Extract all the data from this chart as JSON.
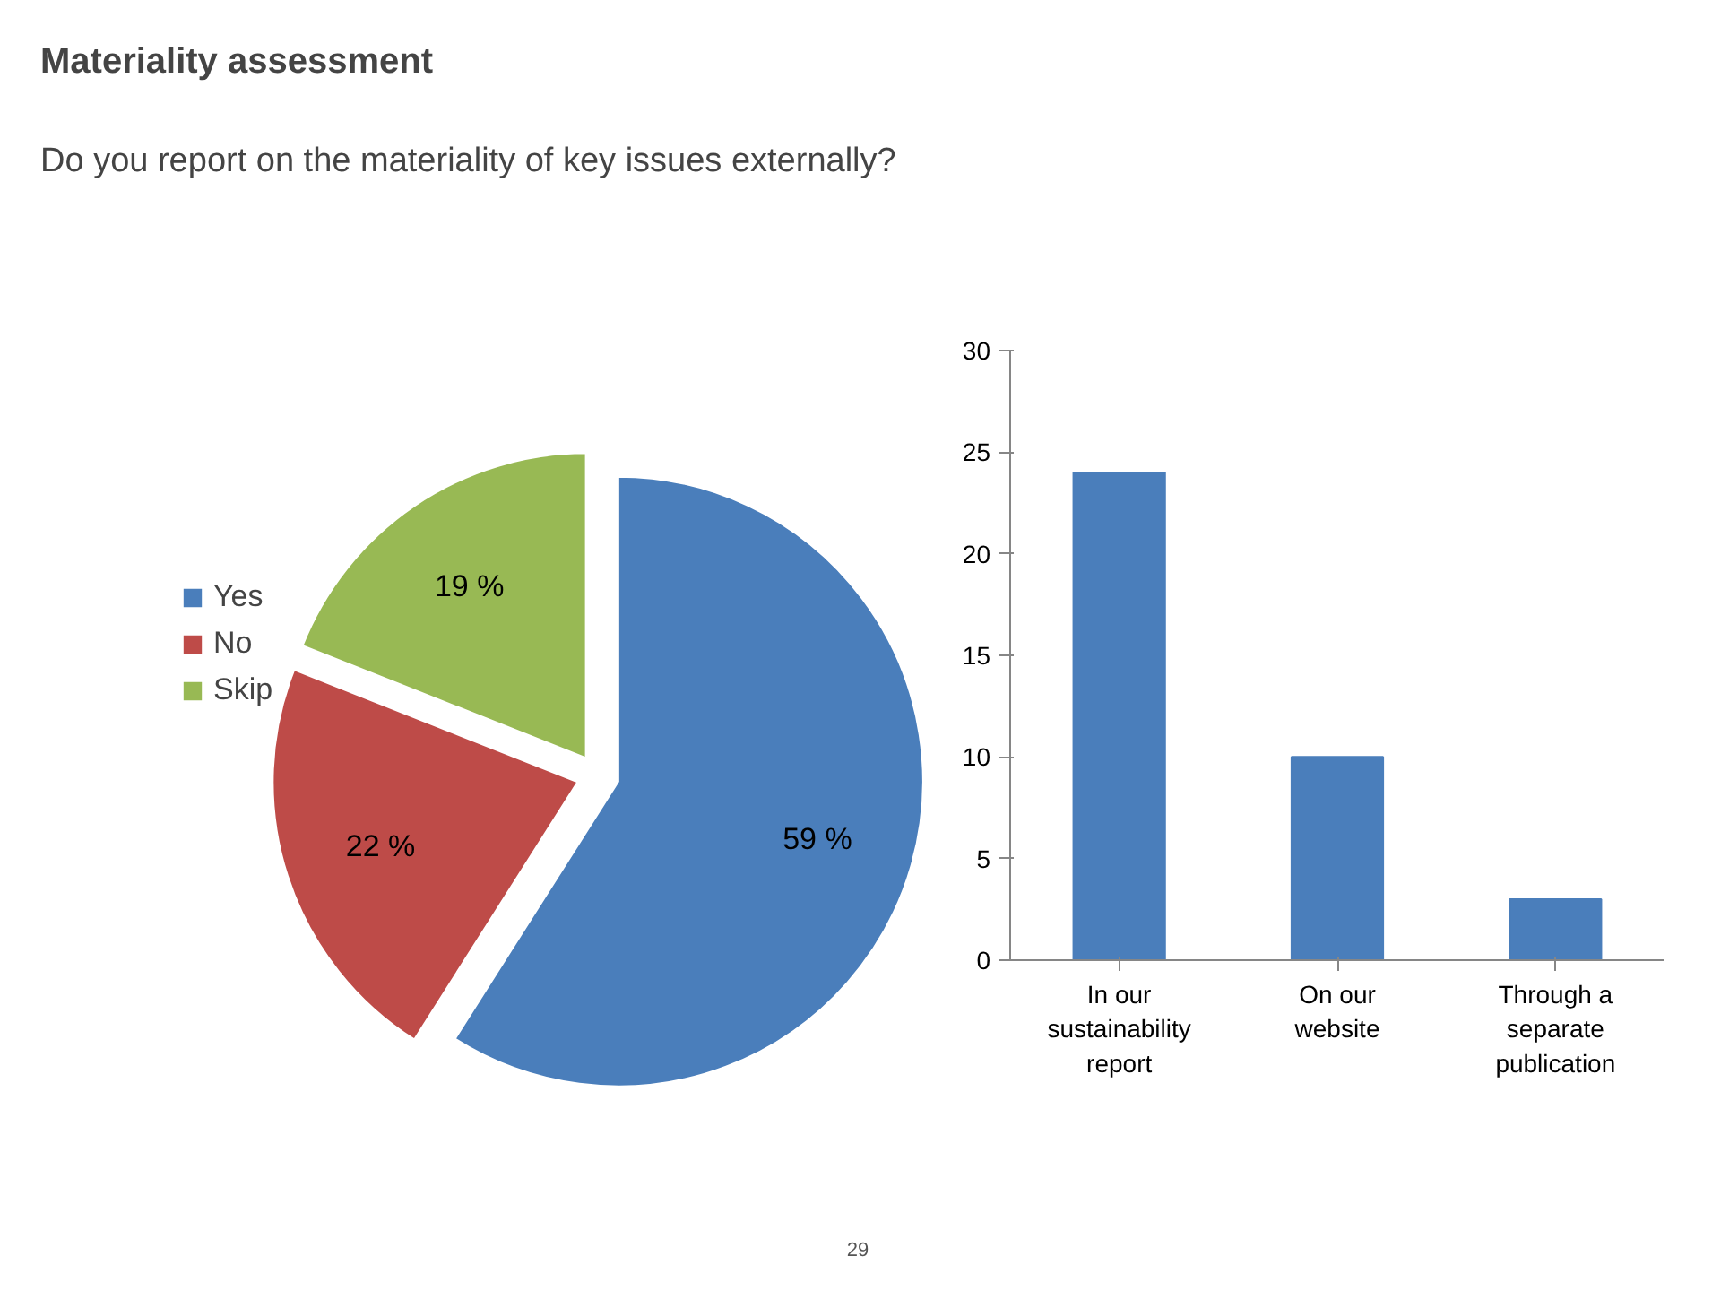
{
  "chart_data": [
    {
      "type": "pie",
      "title": "Materiality assessment",
      "subtitle": "Do you report on the materiality of key issues externally?",
      "categories": [
        "Yes",
        "No",
        "Skip"
      ],
      "values": [
        59,
        22,
        19
      ],
      "colors": [
        "#4a7ebb",
        "#be4b48",
        "#98b954"
      ],
      "value_labels": [
        "59 %",
        "22 %",
        "19 %"
      ],
      "legend": "left",
      "annotations": [
        "29"
      ]
    },
    {
      "type": "bar",
      "categories": [
        "In our sustainability report",
        "On our website",
        "Through a separate publication"
      ],
      "values": [
        24,
        10,
        3
      ],
      "color": "#4a7ebb",
      "ylim": [
        0,
        30
      ],
      "yticks": [
        0,
        5,
        10,
        15,
        20,
        25,
        30
      ],
      "grid": false
    }
  ]
}
